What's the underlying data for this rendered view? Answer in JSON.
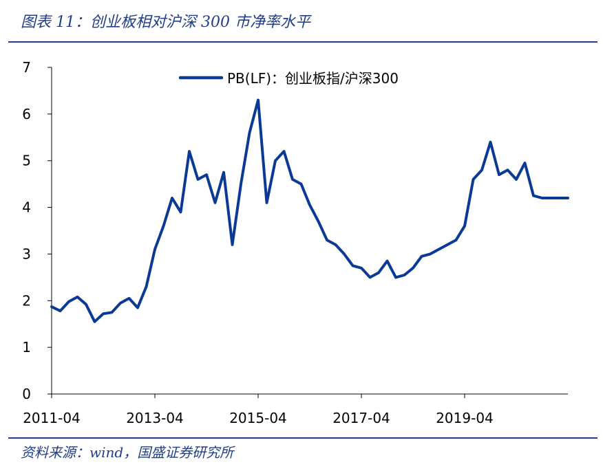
{
  "figure": {
    "title": "图表 11：创业板相对沪深 300 市净率水平",
    "source": "资料来源：wind，国盛证券研究所"
  },
  "colors": {
    "series": "#0a3a96",
    "accent": "#1f3d8a",
    "axis": "#000000"
  },
  "chart_data": {
    "type": "line",
    "title": "",
    "xlabel": "",
    "ylabel": "",
    "ylim": [
      0,
      7
    ],
    "yticks": [
      "0",
      "1",
      "2",
      "3",
      "4",
      "5",
      "6",
      "7"
    ],
    "xticks": [
      "2011-04",
      "2013-04",
      "2015-04",
      "2017-04",
      "2019-04"
    ],
    "x_range": [
      "2011-04",
      "2021-04"
    ],
    "grid": false,
    "legend": "top-center",
    "series": [
      {
        "name": "PB(LF)：创业板指/沪深300",
        "x": [
          "2011-04",
          "2011-06",
          "2011-08",
          "2011-10",
          "2011-12",
          "2012-02",
          "2012-04",
          "2012-06",
          "2012-08",
          "2012-10",
          "2012-12",
          "2013-02",
          "2013-04",
          "2013-06",
          "2013-08",
          "2013-10",
          "2013-12",
          "2014-02",
          "2014-04",
          "2014-06",
          "2014-08",
          "2014-10",
          "2014-12",
          "2015-02",
          "2015-04",
          "2015-06",
          "2015-08",
          "2015-10",
          "2015-12",
          "2016-02",
          "2016-04",
          "2016-06",
          "2016-08",
          "2016-10",
          "2016-12",
          "2017-02",
          "2017-04",
          "2017-06",
          "2017-08",
          "2017-10",
          "2017-12",
          "2018-02",
          "2018-04",
          "2018-06",
          "2018-08",
          "2018-10",
          "2018-12",
          "2019-02",
          "2019-04",
          "2019-06",
          "2019-08",
          "2019-10",
          "2019-12",
          "2020-02",
          "2020-04",
          "2020-06",
          "2020-08",
          "2020-10",
          "2020-12",
          "2021-02",
          "2021-04"
        ],
        "values": [
          1.87,
          1.78,
          1.98,
          2.08,
          1.92,
          1.55,
          1.72,
          1.75,
          1.95,
          2.05,
          1.85,
          2.3,
          3.1,
          3.6,
          4.2,
          3.9,
          5.2,
          4.6,
          4.7,
          4.1,
          4.75,
          3.2,
          4.5,
          5.6,
          6.3,
          4.1,
          5.0,
          5.2,
          4.6,
          4.5,
          4.05,
          3.7,
          3.3,
          3.2,
          3.0,
          2.75,
          2.7,
          2.5,
          2.6,
          2.85,
          2.5,
          2.55,
          2.7,
          2.95,
          3.0,
          3.1,
          3.2,
          3.3,
          3.6,
          4.6,
          4.8,
          5.4,
          4.7,
          4.8,
          4.6,
          4.95,
          4.25,
          4.2,
          4.2,
          4.2,
          4.2
        ]
      }
    ]
  }
}
